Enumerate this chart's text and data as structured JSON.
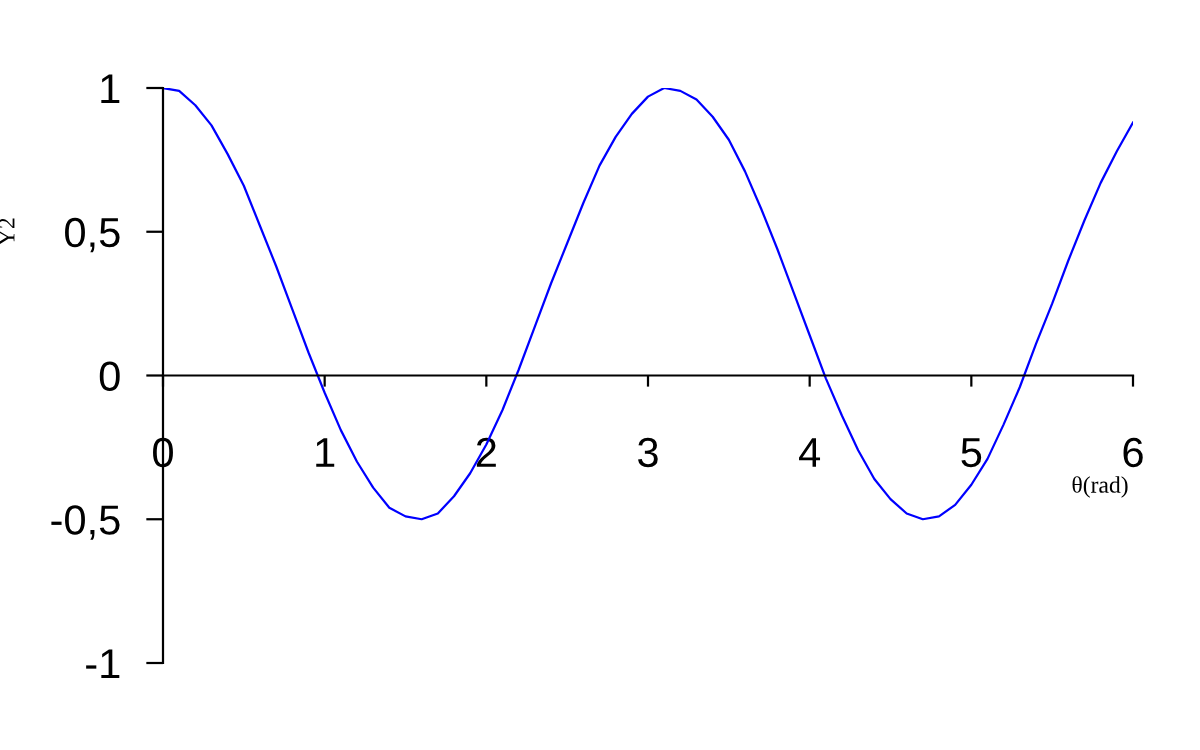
{
  "chart_data": {
    "type": "line",
    "xlabel": "θ(rad)",
    "ylabel": "Y2",
    "x": [
      0,
      0.1,
      0.2,
      0.3,
      0.4,
      0.5,
      0.6,
      0.7,
      0.8,
      0.9,
      1.0,
      1.1,
      1.2,
      1.3,
      1.4,
      1.5,
      1.6,
      1.7,
      1.8,
      1.9,
      2.0,
      2.1,
      2.2,
      2.3,
      2.4,
      2.5,
      2.6,
      2.7,
      2.8,
      2.9,
      3.0,
      3.1,
      3.2,
      3.3,
      3.4,
      3.5,
      3.6,
      3.7,
      3.8,
      3.9,
      4.0,
      4.1,
      4.2,
      4.3,
      4.4,
      4.5,
      4.6,
      4.7,
      4.8,
      4.9,
      5.0,
      5.1,
      5.2,
      5.3,
      5.4,
      5.5,
      5.6,
      5.7,
      5.8,
      5.9,
      6.0
    ],
    "series": [
      {
        "color": "#0000ff",
        "values": [
          1.0,
          0.99,
          0.94,
          0.87,
          0.77,
          0.66,
          0.52,
          0.38,
          0.23,
          0.08,
          -0.06,
          -0.19,
          -0.3,
          -0.39,
          -0.46,
          -0.49,
          -0.5,
          -0.48,
          -0.42,
          -0.34,
          -0.24,
          -0.12,
          0.02,
          0.17,
          0.32,
          0.46,
          0.6,
          0.73,
          0.83,
          0.91,
          0.97,
          1.0,
          0.99,
          0.96,
          0.9,
          0.82,
          0.71,
          0.58,
          0.44,
          0.29,
          0.14,
          -0.01,
          -0.14,
          -0.26,
          -0.36,
          -0.43,
          -0.48,
          -0.5,
          -0.49,
          -0.45,
          -0.38,
          -0.29,
          -0.17,
          -0.04,
          0.11,
          0.25,
          0.4,
          0.54,
          0.67,
          0.78,
          0.88
        ]
      }
    ],
    "xlim": [
      0,
      6
    ],
    "ylim": [
      -1,
      1
    ],
    "xticks": [
      0,
      1,
      2,
      3,
      4,
      5,
      6
    ],
    "yticks": [
      -1,
      {
        "value": -0.5,
        "label": "-0,5"
      },
      0,
      {
        "value": 0.5,
        "label": "0,5"
      },
      1
    ],
    "marker": "none",
    "line_style": "solid"
  }
}
